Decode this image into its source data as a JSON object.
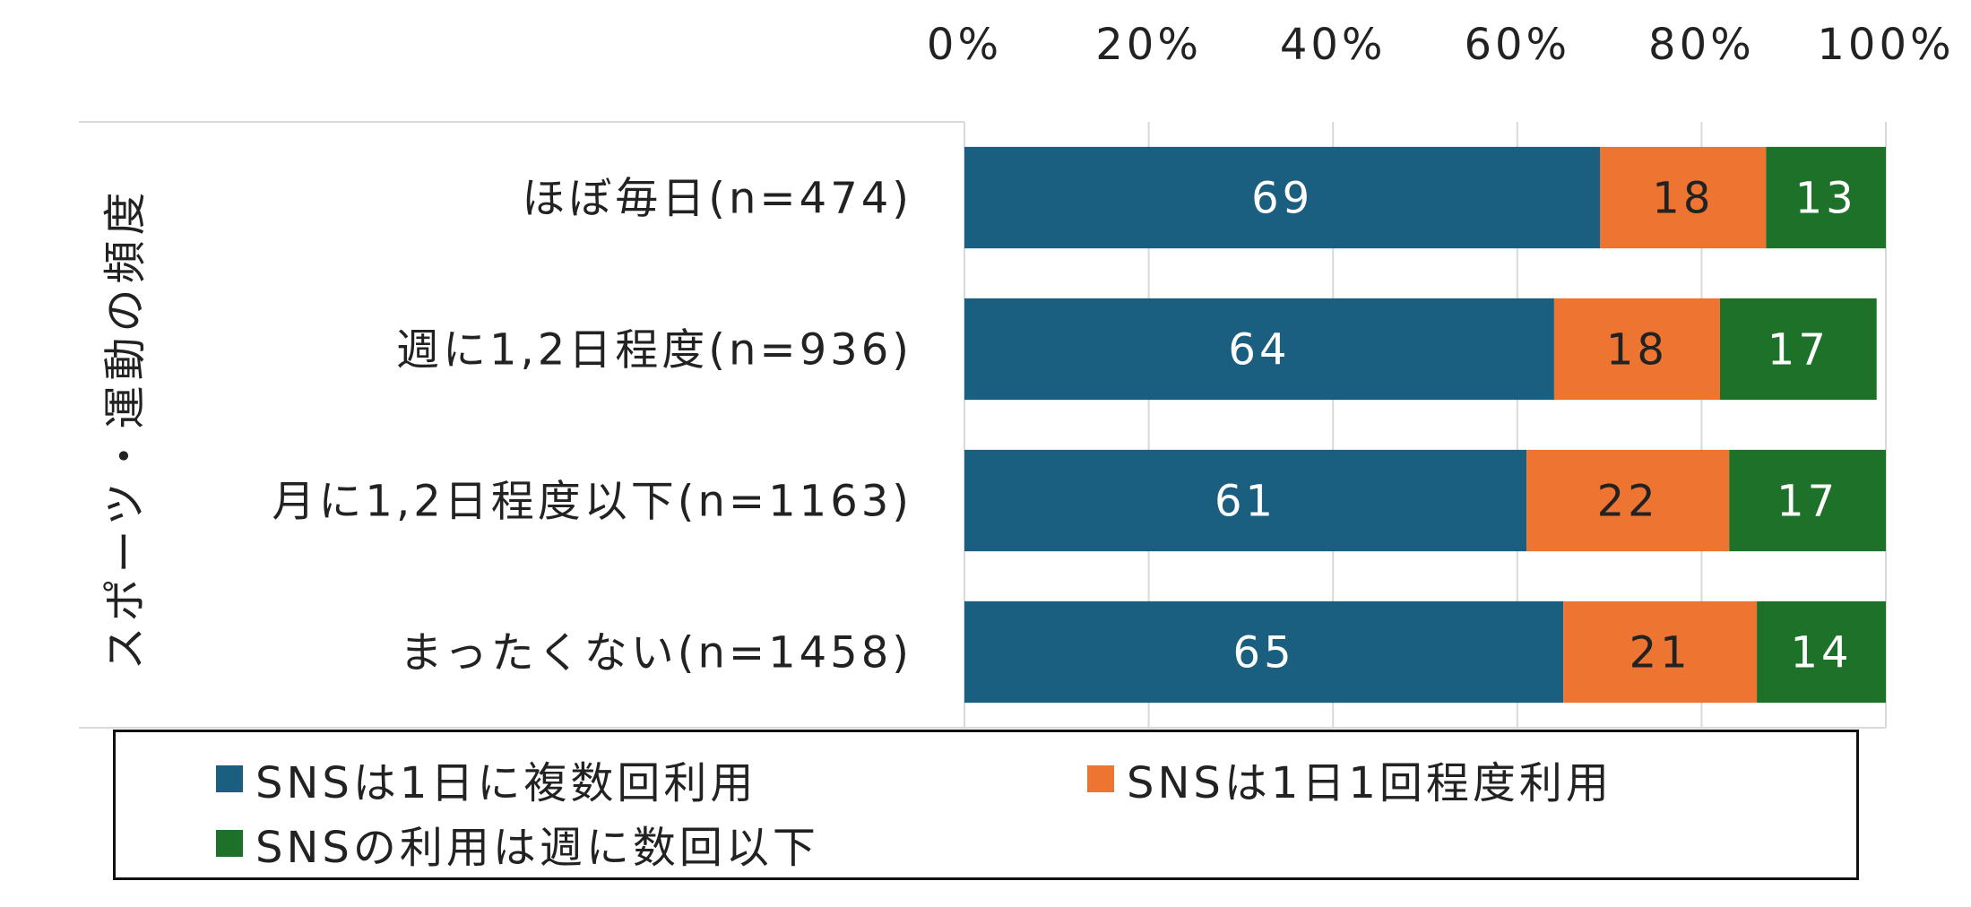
{
  "chart_data": {
    "type": "bar",
    "orientation": "horizontal",
    "stacked": true,
    "ylabel": "スポーツ・運動の頻度",
    "xlabel": "",
    "xlim": [
      0,
      100
    ],
    "x_ticks": [
      "0%",
      "20%",
      "40%",
      "60%",
      "80%",
      "100%"
    ],
    "x_axis_position": "top",
    "grid": true,
    "legend_position": "bottom",
    "categories": [
      "ほぼ毎日(n=474)",
      "週に1,2日程度(n=936)",
      "月に1,2日程度以下(n=1163)",
      "まったくない(n=1458)"
    ],
    "series": [
      {
        "name": "SNSは1日に複数回利用",
        "color": "#1a5e80",
        "values": [
          69,
          64,
          61,
          65
        ]
      },
      {
        "name": "SNSは1日1回程度利用",
        "color": "#ed7431",
        "values": [
          18,
          18,
          22,
          21
        ]
      },
      {
        "name": "SNSの利用は週に数回以下",
        "color": "#1e7129",
        "values": [
          13,
          17,
          17,
          14
        ]
      }
    ]
  }
}
